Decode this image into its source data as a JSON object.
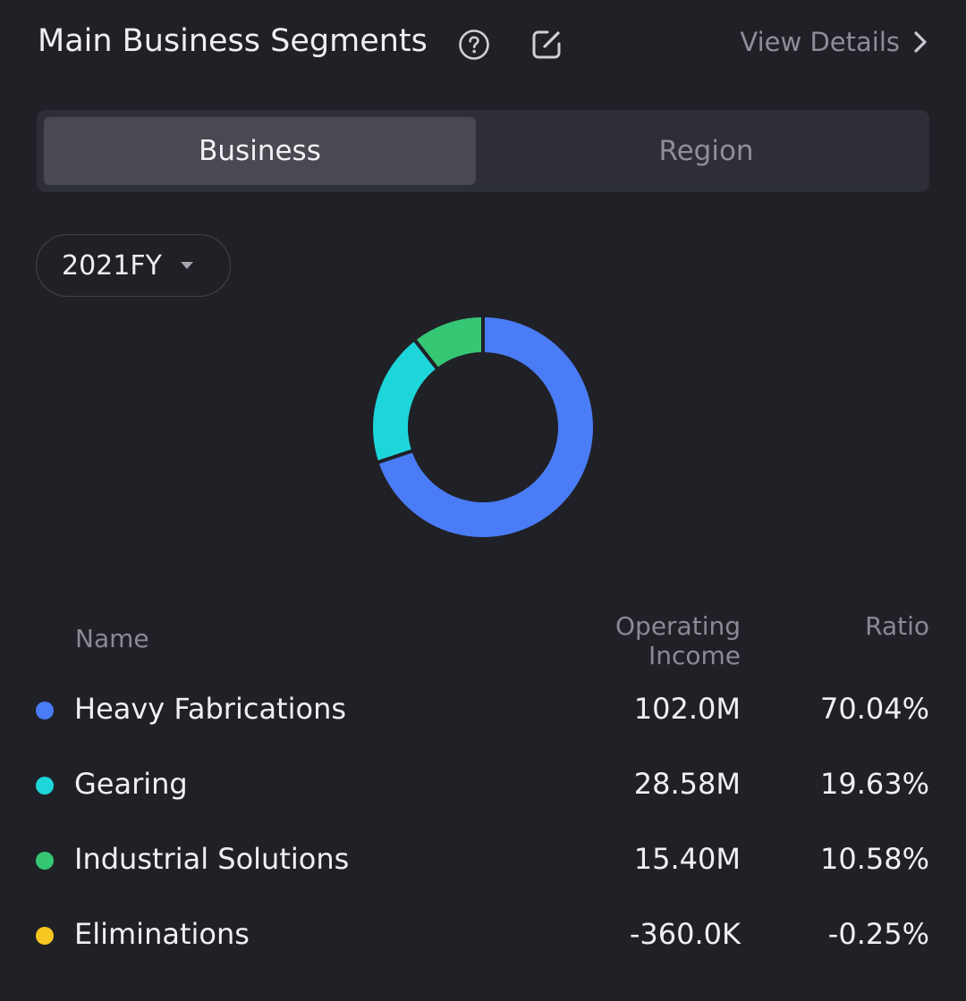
{
  "header": {
    "title": "Main Business Segments",
    "help_icon": "help-circle-icon",
    "edit_icon": "edit-icon",
    "view_details_label": "View Details",
    "view_details_icon": "chevron-right-icon"
  },
  "tabs": [
    {
      "label": "Business",
      "active": true
    },
    {
      "label": "Region",
      "active": false
    }
  ],
  "period_select": {
    "value": "2021FY",
    "icon": "caret-down-icon"
  },
  "table": {
    "headers": {
      "name": "Name",
      "income_line1": "Operating",
      "income_line2": "Income",
      "ratio": "Ratio"
    },
    "rows": [
      {
        "name": "Heavy Fabrications",
        "income": "102.0M",
        "ratio": "70.04%",
        "color": "#4A7CF6"
      },
      {
        "name": "Gearing",
        "income": "28.58M",
        "ratio": "19.63%",
        "color": "#1DD6DA"
      },
      {
        "name": "Industrial Solutions",
        "income": "15.40M",
        "ratio": "10.58%",
        "color": "#35C774"
      },
      {
        "name": "Eliminations",
        "income": "-360.0K",
        "ratio": "-0.25%",
        "color": "#F7C621"
      }
    ]
  },
  "chart_data": {
    "type": "pie",
    "categories": [
      "Heavy Fabrications",
      "Gearing",
      "Industrial Solutions",
      "Eliminations"
    ],
    "values": [
      70.04,
      19.63,
      10.58,
      -0.25
    ],
    "colors": [
      "#4A7CF6",
      "#1DD6DA",
      "#35C774",
      "#F7C621"
    ],
    "style": "donut"
  },
  "colors": {
    "background": "#202027",
    "segment_bg": "#2D2E37",
    "segment_active": "#494952",
    "muted_text": "#8A8A95"
  }
}
